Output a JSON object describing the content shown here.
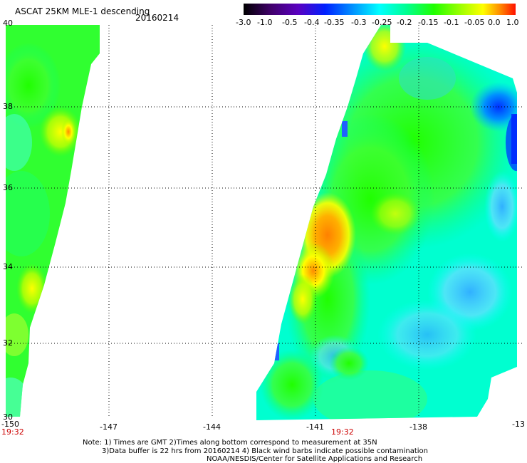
{
  "header": {
    "title": "ASCAT 25KM MLE-1 descending",
    "date": "20160214"
  },
  "colorbar": {
    "labels": [
      "-3.0",
      "-1.0",
      "-0.5",
      "-0.4",
      "-0.35",
      "-0.3",
      "-0.25",
      "-0.2",
      "-0.15",
      "-0.1",
      "-0.05",
      "0.0",
      "1.0"
    ],
    "colors": [
      "#300030",
      "#5a00a0",
      "#0000ff",
      "#0070ff",
      "#00b0ff",
      "#00ffff",
      "#00ffa0",
      "#00ff40",
      "#60ff00",
      "#c0ff00",
      "#ffff00",
      "#ff8000",
      "#ff0000"
    ]
  },
  "axes": {
    "lat_labels": [
      "40",
      "38",
      "36",
      "34",
      "32",
      "30"
    ],
    "lon_labels": [
      "-150",
      "-147",
      "-144",
      "-141",
      "-138",
      "-13"
    ],
    "time_labels": [
      "19:32",
      "19:32"
    ]
  },
  "notes": {
    "line1": "Note: 1) Times are GMT 2)Times along bottom correspond to measurement at 35N",
    "line2": "3)Data buffer is 22 hrs from 20160214 4) Black wind barbs indicate possible contamination",
    "line3": "NOAA/NESDIS/Center for Satellite Applications and Research"
  }
}
